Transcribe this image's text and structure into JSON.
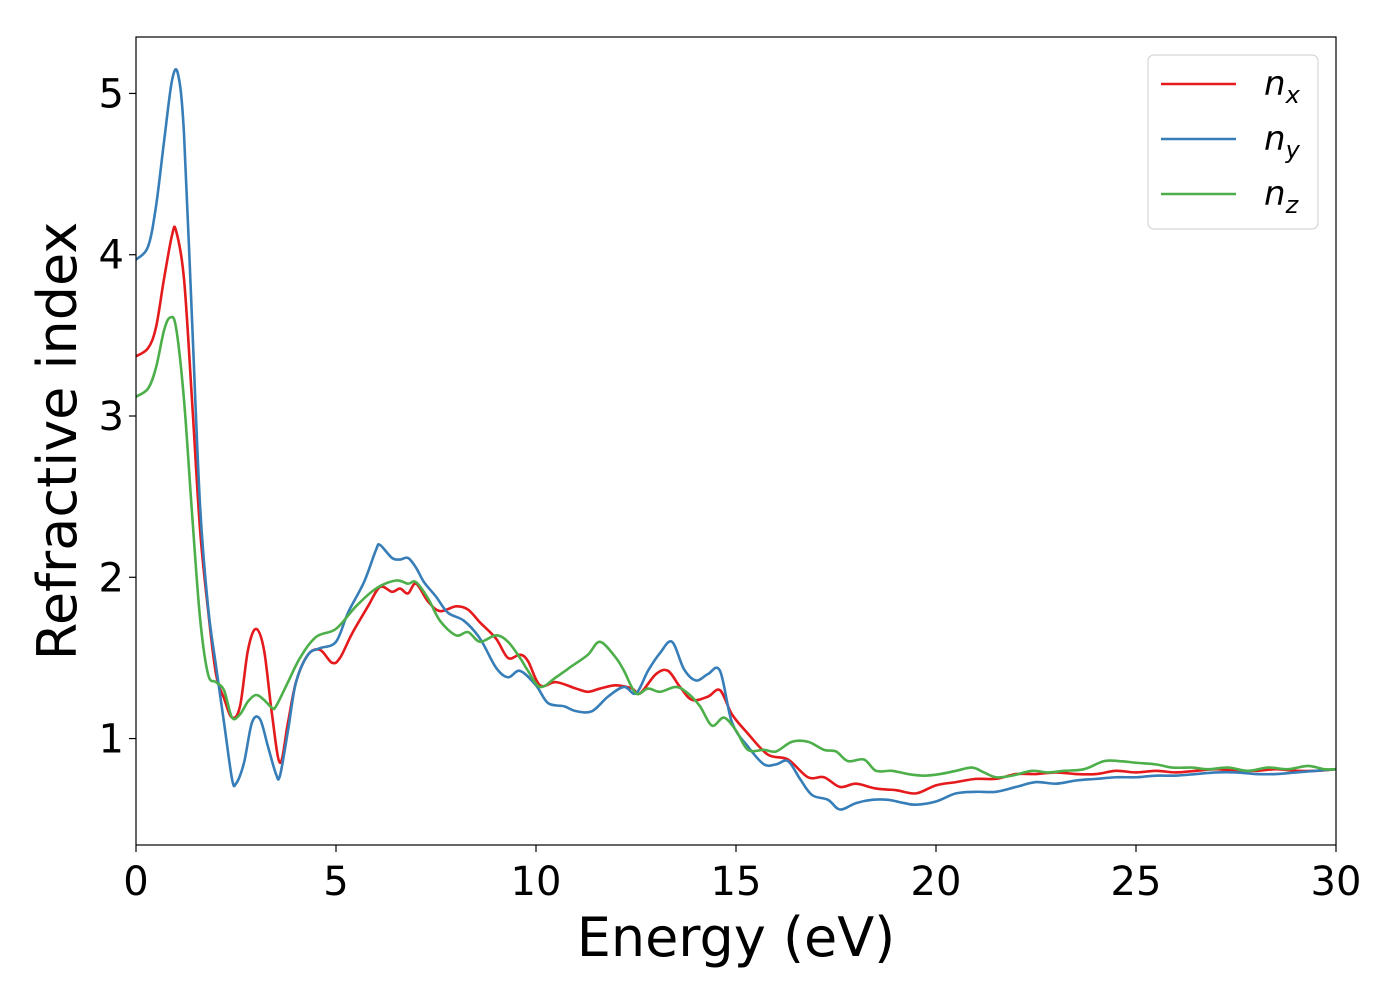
{
  "chart_data": {
    "type": "line",
    "xlabel": "Energy (eV)",
    "ylabel": "Refractive index",
    "xlim": [
      0,
      30
    ],
    "ylim": [
      0.34,
      5.35
    ],
    "xticks": [
      0,
      5,
      10,
      15,
      20,
      25,
      30
    ],
    "yticks": [
      1,
      2,
      3,
      4,
      5
    ],
    "grid": false,
    "legend_position": "top-right",
    "series": [
      {
        "name": "n",
        "subscript": "x",
        "color": "#e41a1c",
        "points": [
          [
            0,
            3.37
          ],
          [
            0.3,
            3.42
          ],
          [
            0.5,
            3.55
          ],
          [
            0.7,
            3.85
          ],
          [
            0.9,
            4.12
          ],
          [
            1.0,
            4.15
          ],
          [
            1.2,
            3.85
          ],
          [
            1.4,
            3.1
          ],
          [
            1.6,
            2.3
          ],
          [
            1.8,
            1.8
          ],
          [
            2.0,
            1.4
          ],
          [
            2.2,
            1.25
          ],
          [
            2.4,
            1.13
          ],
          [
            2.6,
            1.2
          ],
          [
            2.8,
            1.55
          ],
          [
            3.0,
            1.68
          ],
          [
            3.2,
            1.55
          ],
          [
            3.4,
            1.15
          ],
          [
            3.6,
            0.85
          ],
          [
            3.8,
            1.1
          ],
          [
            4.0,
            1.35
          ],
          [
            4.3,
            1.52
          ],
          [
            4.6,
            1.55
          ],
          [
            4.9,
            1.47
          ],
          [
            5.1,
            1.5
          ],
          [
            5.4,
            1.65
          ],
          [
            5.8,
            1.82
          ],
          [
            6.1,
            1.94
          ],
          [
            6.4,
            1.91
          ],
          [
            6.6,
            1.93
          ],
          [
            6.8,
            1.9
          ],
          [
            7.0,
            1.96
          ],
          [
            7.3,
            1.85
          ],
          [
            7.6,
            1.79
          ],
          [
            8.0,
            1.82
          ],
          [
            8.3,
            1.8
          ],
          [
            8.6,
            1.72
          ],
          [
            9.0,
            1.62
          ],
          [
            9.3,
            1.5
          ],
          [
            9.6,
            1.52
          ],
          [
            9.8,
            1.48
          ],
          [
            10.1,
            1.33
          ],
          [
            10.5,
            1.35
          ],
          [
            11.0,
            1.31
          ],
          [
            11.3,
            1.29
          ],
          [
            11.6,
            1.31
          ],
          [
            12.0,
            1.33
          ],
          [
            12.4,
            1.31
          ],
          [
            12.6,
            1.28
          ],
          [
            13.0,
            1.4
          ],
          [
            13.3,
            1.42
          ],
          [
            13.6,
            1.32
          ],
          [
            13.9,
            1.24
          ],
          [
            14.3,
            1.26
          ],
          [
            14.6,
            1.3
          ],
          [
            14.9,
            1.15
          ],
          [
            15.3,
            1.03
          ],
          [
            15.8,
            0.9
          ],
          [
            16.3,
            0.87
          ],
          [
            16.8,
            0.76
          ],
          [
            17.2,
            0.76
          ],
          [
            17.6,
            0.7
          ],
          [
            18.0,
            0.72
          ],
          [
            18.5,
            0.69
          ],
          [
            19.0,
            0.68
          ],
          [
            19.5,
            0.66
          ],
          [
            20.0,
            0.71
          ],
          [
            20.5,
            0.73
          ],
          [
            21.0,
            0.75
          ],
          [
            21.5,
            0.75
          ],
          [
            22.0,
            0.78
          ],
          [
            22.5,
            0.78
          ],
          [
            23.0,
            0.79
          ],
          [
            23.5,
            0.78
          ],
          [
            24.0,
            0.78
          ],
          [
            24.5,
            0.8
          ],
          [
            25.0,
            0.79
          ],
          [
            25.5,
            0.8
          ],
          [
            26.0,
            0.79
          ],
          [
            26.5,
            0.8
          ],
          [
            27.0,
            0.81
          ],
          [
            27.5,
            0.8
          ],
          [
            28.0,
            0.8
          ],
          [
            28.5,
            0.81
          ],
          [
            29.0,
            0.8
          ],
          [
            29.5,
            0.8
          ],
          [
            30,
            0.81
          ]
        ]
      },
      {
        "name": "n",
        "subscript": "y",
        "color": "#377eb8",
        "points": [
          [
            0,
            3.97
          ],
          [
            0.3,
            4.05
          ],
          [
            0.5,
            4.3
          ],
          [
            0.7,
            4.7
          ],
          [
            0.9,
            5.08
          ],
          [
            1.05,
            5.12
          ],
          [
            1.2,
            4.75
          ],
          [
            1.4,
            3.6
          ],
          [
            1.6,
            2.45
          ],
          [
            1.8,
            1.82
          ],
          [
            2.0,
            1.45
          ],
          [
            2.2,
            1.1
          ],
          [
            2.4,
            0.75
          ],
          [
            2.5,
            0.72
          ],
          [
            2.7,
            0.85
          ],
          [
            2.9,
            1.1
          ],
          [
            3.1,
            1.12
          ],
          [
            3.3,
            0.95
          ],
          [
            3.5,
            0.78
          ],
          [
            3.6,
            0.77
          ],
          [
            3.8,
            1.05
          ],
          [
            4.0,
            1.35
          ],
          [
            4.3,
            1.52
          ],
          [
            4.6,
            1.56
          ],
          [
            5.0,
            1.6
          ],
          [
            5.3,
            1.78
          ],
          [
            5.7,
            1.97
          ],
          [
            6.0,
            2.17
          ],
          [
            6.1,
            2.2
          ],
          [
            6.4,
            2.12
          ],
          [
            6.6,
            2.11
          ],
          [
            6.8,
            2.12
          ],
          [
            7.0,
            2.06
          ],
          [
            7.2,
            1.97
          ],
          [
            7.5,
            1.88
          ],
          [
            7.8,
            1.78
          ],
          [
            8.2,
            1.73
          ],
          [
            8.6,
            1.62
          ],
          [
            9.0,
            1.44
          ],
          [
            9.3,
            1.38
          ],
          [
            9.6,
            1.42
          ],
          [
            10.0,
            1.33
          ],
          [
            10.3,
            1.22
          ],
          [
            10.7,
            1.2
          ],
          [
            11.0,
            1.17
          ],
          [
            11.4,
            1.17
          ],
          [
            11.8,
            1.26
          ],
          [
            12.2,
            1.32
          ],
          [
            12.5,
            1.28
          ],
          [
            12.8,
            1.42
          ],
          [
            13.1,
            1.53
          ],
          [
            13.4,
            1.6
          ],
          [
            13.7,
            1.43
          ],
          [
            14.0,
            1.36
          ],
          [
            14.3,
            1.4
          ],
          [
            14.6,
            1.42
          ],
          [
            14.9,
            1.1
          ],
          [
            15.3,
            0.95
          ],
          [
            15.7,
            0.84
          ],
          [
            16.0,
            0.84
          ],
          [
            16.3,
            0.86
          ],
          [
            16.6,
            0.75
          ],
          [
            16.9,
            0.65
          ],
          [
            17.3,
            0.62
          ],
          [
            17.6,
            0.56
          ],
          [
            18.0,
            0.6
          ],
          [
            18.4,
            0.62
          ],
          [
            18.8,
            0.62
          ],
          [
            19.2,
            0.6
          ],
          [
            19.5,
            0.59
          ],
          [
            20.0,
            0.61
          ],
          [
            20.5,
            0.66
          ],
          [
            21.0,
            0.67
          ],
          [
            21.5,
            0.67
          ],
          [
            22.0,
            0.7
          ],
          [
            22.5,
            0.73
          ],
          [
            23.0,
            0.72
          ],
          [
            23.5,
            0.74
          ],
          [
            24.0,
            0.75
          ],
          [
            24.5,
            0.76
          ],
          [
            25.0,
            0.76
          ],
          [
            25.5,
            0.77
          ],
          [
            26.0,
            0.77
          ],
          [
            26.5,
            0.78
          ],
          [
            27.0,
            0.79
          ],
          [
            27.5,
            0.79
          ],
          [
            28.0,
            0.78
          ],
          [
            28.5,
            0.78
          ],
          [
            29.0,
            0.79
          ],
          [
            29.5,
            0.8
          ],
          [
            30,
            0.81
          ]
        ]
      },
      {
        "name": "n",
        "subscript": "z",
        "color": "#4daf4a",
        "points": [
          [
            0,
            3.12
          ],
          [
            0.3,
            3.17
          ],
          [
            0.5,
            3.3
          ],
          [
            0.7,
            3.53
          ],
          [
            0.85,
            3.61
          ],
          [
            1.0,
            3.55
          ],
          [
            1.2,
            3.1
          ],
          [
            1.4,
            2.4
          ],
          [
            1.6,
            1.75
          ],
          [
            1.8,
            1.4
          ],
          [
            2.0,
            1.35
          ],
          [
            2.2,
            1.3
          ],
          [
            2.4,
            1.13
          ],
          [
            2.6,
            1.15
          ],
          [
            2.8,
            1.23
          ],
          [
            3.0,
            1.27
          ],
          [
            3.2,
            1.24
          ],
          [
            3.4,
            1.19
          ],
          [
            3.5,
            1.2
          ],
          [
            3.8,
            1.35
          ],
          [
            4.1,
            1.5
          ],
          [
            4.5,
            1.63
          ],
          [
            5.0,
            1.68
          ],
          [
            5.5,
            1.82
          ],
          [
            6.0,
            1.93
          ],
          [
            6.5,
            1.98
          ],
          [
            6.8,
            1.96
          ],
          [
            7.0,
            1.97
          ],
          [
            7.3,
            1.87
          ],
          [
            7.6,
            1.73
          ],
          [
            8.0,
            1.64
          ],
          [
            8.3,
            1.66
          ],
          [
            8.6,
            1.6
          ],
          [
            9.0,
            1.64
          ],
          [
            9.3,
            1.6
          ],
          [
            9.6,
            1.5
          ],
          [
            9.8,
            1.42
          ],
          [
            10.1,
            1.32
          ],
          [
            10.5,
            1.38
          ],
          [
            10.9,
            1.45
          ],
          [
            11.3,
            1.52
          ],
          [
            11.6,
            1.6
          ],
          [
            12.0,
            1.5
          ],
          [
            12.2,
            1.42
          ],
          [
            12.5,
            1.28
          ],
          [
            12.8,
            1.31
          ],
          [
            13.1,
            1.29
          ],
          [
            13.5,
            1.32
          ],
          [
            13.8,
            1.28
          ],
          [
            14.1,
            1.2
          ],
          [
            14.4,
            1.08
          ],
          [
            14.7,
            1.13
          ],
          [
            15.0,
            1.05
          ],
          [
            15.3,
            0.93
          ],
          [
            15.7,
            0.93
          ],
          [
            16.0,
            0.92
          ],
          [
            16.4,
            0.98
          ],
          [
            16.8,
            0.98
          ],
          [
            17.2,
            0.93
          ],
          [
            17.5,
            0.92
          ],
          [
            17.8,
            0.86
          ],
          [
            18.2,
            0.87
          ],
          [
            18.5,
            0.8
          ],
          [
            18.9,
            0.8
          ],
          [
            19.3,
            0.78
          ],
          [
            19.7,
            0.77
          ],
          [
            20.1,
            0.78
          ],
          [
            20.5,
            0.8
          ],
          [
            20.9,
            0.82
          ],
          [
            21.2,
            0.79
          ],
          [
            21.5,
            0.76
          ],
          [
            21.9,
            0.77
          ],
          [
            22.4,
            0.8
          ],
          [
            22.8,
            0.79
          ],
          [
            23.2,
            0.8
          ],
          [
            23.7,
            0.81
          ],
          [
            24.2,
            0.86
          ],
          [
            24.6,
            0.86
          ],
          [
            25.0,
            0.85
          ],
          [
            25.5,
            0.84
          ],
          [
            25.9,
            0.82
          ],
          [
            26.4,
            0.82
          ],
          [
            26.8,
            0.81
          ],
          [
            27.3,
            0.82
          ],
          [
            27.8,
            0.8
          ],
          [
            28.3,
            0.82
          ],
          [
            28.8,
            0.81
          ],
          [
            29.3,
            0.83
          ],
          [
            29.7,
            0.81
          ],
          [
            30,
            0.81
          ]
        ]
      }
    ]
  }
}
